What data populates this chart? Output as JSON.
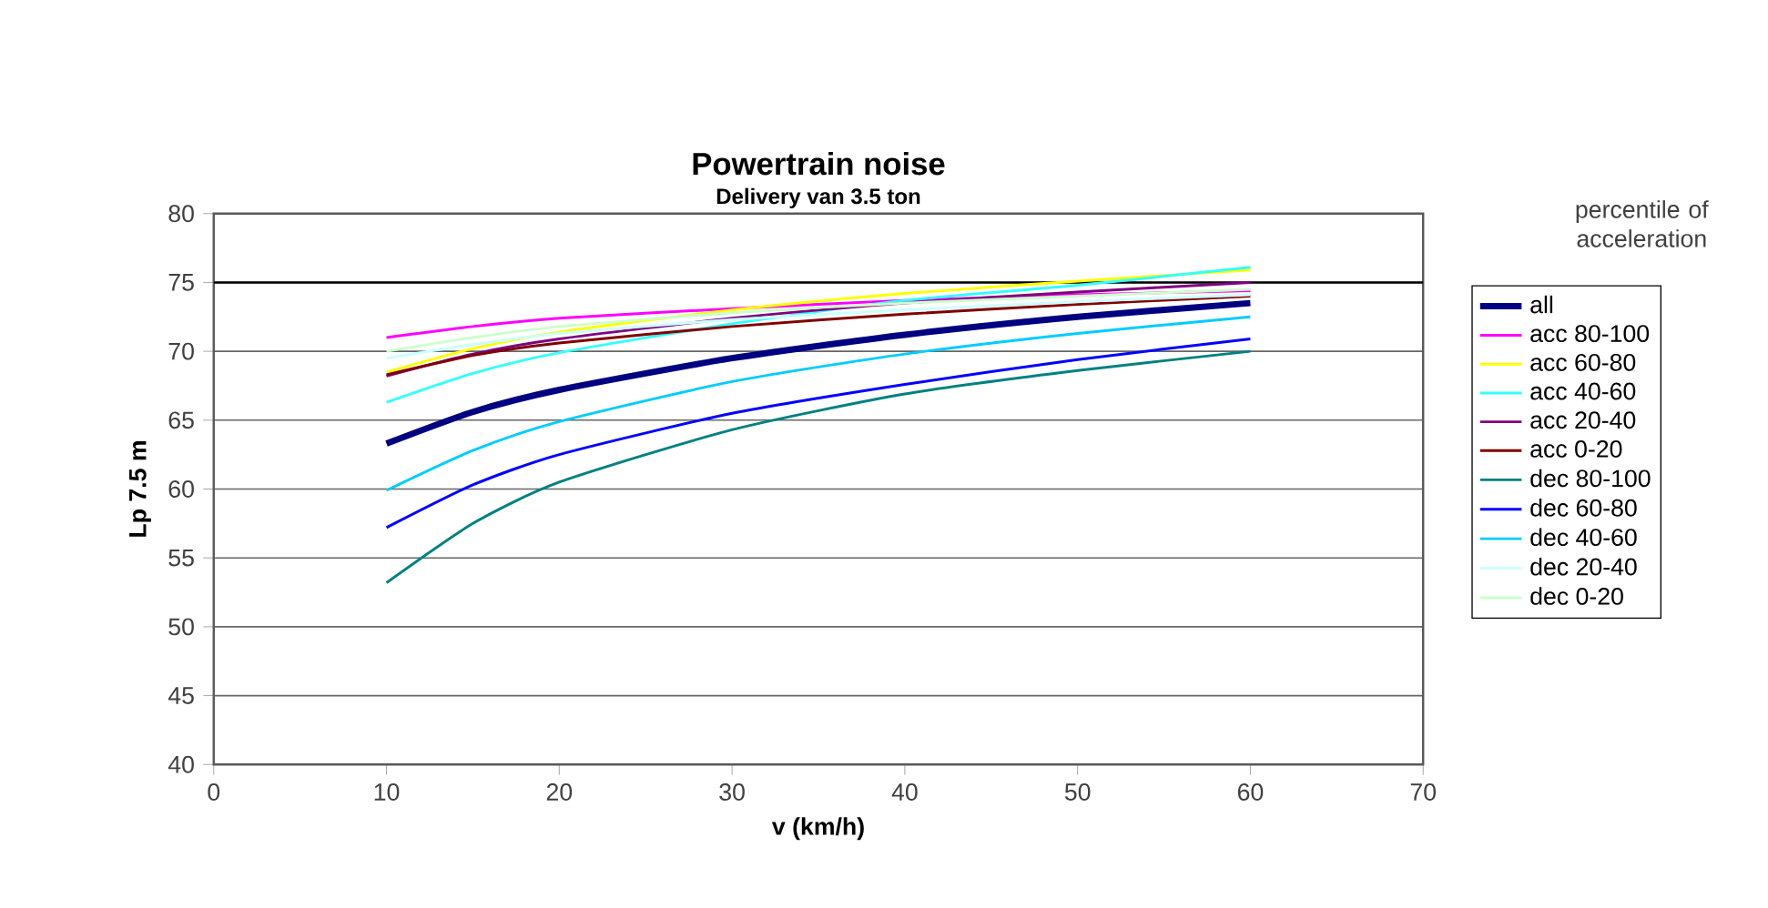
{
  "chart_data": {
    "type": "line",
    "title": "Powertrain noise",
    "subtitle": "Delivery van 3.5 ton",
    "xlabel": "v (km/h)",
    "ylabel": "Lp 7.5 m",
    "legend_title": "percentile of acceleration",
    "x": [
      10,
      15,
      20,
      30,
      40,
      50,
      60
    ],
    "series": [
      {
        "name": "all",
        "color": "#000080",
        "values": [
          63.3,
          65.6,
          67.2,
          69.5,
          71.2,
          72.5,
          73.5
        ]
      },
      {
        "name": "acc 80-100",
        "color": "#ff00ff",
        "values": [
          71.0,
          71.8,
          72.4,
          73.1,
          73.7,
          74.1,
          74.4
        ]
      },
      {
        "name": "acc 60-80",
        "color": "#ffff00",
        "values": [
          68.5,
          70.2,
          71.4,
          73.0,
          74.2,
          75.1,
          75.9
        ]
      },
      {
        "name": "acc 40-60",
        "color": "#33ffff",
        "values": [
          66.3,
          68.4,
          69.9,
          72.0,
          73.7,
          74.8,
          76.1
        ]
      },
      {
        "name": "acc 20-40",
        "color": "#800080",
        "values": [
          68.2,
          69.8,
          70.9,
          72.4,
          73.5,
          74.3,
          75.0
        ]
      },
      {
        "name": "acc 0-20",
        "color": "#800000",
        "values": [
          68.3,
          69.7,
          70.6,
          71.8,
          72.7,
          73.4,
          74.0
        ]
      },
      {
        "name": "dec 80-100",
        "color": "#008080",
        "values": [
          53.2,
          57.5,
          60.5,
          64.3,
          66.9,
          68.6,
          70.0
        ]
      },
      {
        "name": "dec 60-80",
        "color": "#0000ff",
        "values": [
          57.2,
          60.3,
          62.5,
          65.5,
          67.6,
          69.4,
          70.9
        ]
      },
      {
        "name": "dec 40-60",
        "color": "#00ccff",
        "values": [
          59.9,
          62.8,
          64.9,
          67.8,
          69.8,
          71.3,
          72.5
        ]
      },
      {
        "name": "dec 20-40",
        "color": "#ccffff",
        "values": [
          69.5,
          70.5,
          71.3,
          72.3,
          73.0,
          73.6,
          74.1
        ]
      },
      {
        "name": "dec 0-20",
        "color": "#ccffcc",
        "values": [
          70.0,
          71.0,
          71.8,
          72.8,
          73.5,
          74.0,
          74.5
        ]
      }
    ],
    "xlim": [
      0,
      70
    ],
    "xticks": [
      0,
      10,
      20,
      30,
      40,
      50,
      60,
      70
    ],
    "ylim": [
      40,
      80
    ],
    "yticks": [
      40,
      45,
      50,
      55,
      60,
      65,
      70,
      75,
      80
    ],
    "ref_lines": [
      {
        "axis": "y",
        "value": 75,
        "color": "#000000"
      }
    ],
    "grid": "y",
    "legend": "right",
    "marker": "none",
    "line_style": "solid"
  }
}
